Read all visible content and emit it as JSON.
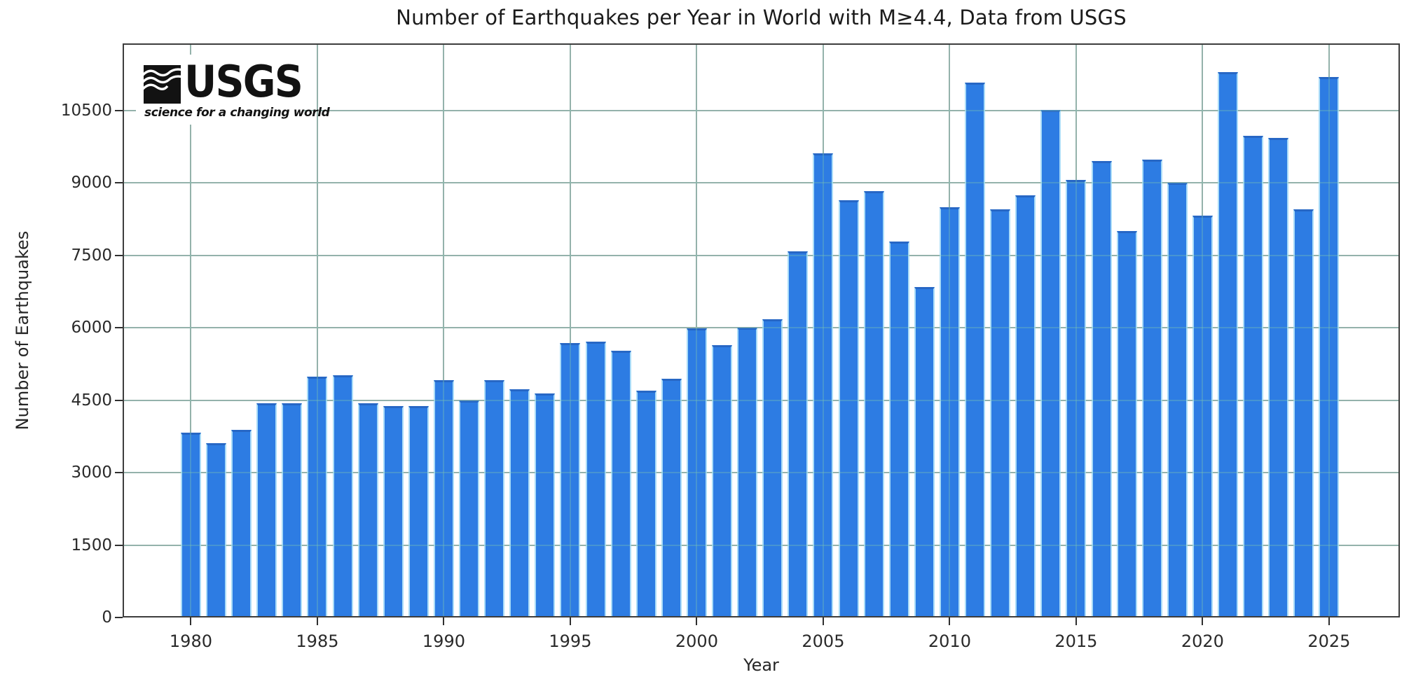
{
  "chart_data": {
    "type": "bar",
    "title": "Number of Earthquakes per Year in World with M≥4.4, Data from USGS",
    "xlabel": "Year",
    "ylabel": "Number of Earthquakes",
    "x": [
      1980,
      1981,
      1982,
      1983,
      1984,
      1985,
      1986,
      1987,
      1988,
      1989,
      1990,
      1991,
      1992,
      1993,
      1994,
      1995,
      1996,
      1997,
      1998,
      1999,
      2000,
      2001,
      2002,
      2003,
      2004,
      2005,
      2006,
      2007,
      2008,
      2009,
      2010,
      2011,
      2012,
      2013,
      2014,
      2015,
      2016,
      2017,
      2018,
      2019,
      2020,
      2021,
      2022,
      2023,
      2024,
      2025
    ],
    "values": [
      3830,
      3610,
      3880,
      4430,
      4430,
      4990,
      5020,
      4440,
      4380,
      4380,
      4910,
      4490,
      4920,
      4720,
      4640,
      5680,
      5710,
      5530,
      4700,
      4940,
      5990,
      5640,
      6000,
      6170,
      7590,
      9620,
      8640,
      8830,
      7780,
      6850,
      8490,
      11080,
      8460,
      8740,
      10510,
      9060,
      9460,
      8000,
      9490,
      9010,
      8330,
      11300,
      9980,
      9930,
      8460,
      11200
    ],
    "xticks": [
      1980,
      1985,
      1990,
      1995,
      2000,
      2005,
      2010,
      2015,
      2020,
      2025
    ],
    "yticks": [
      0,
      1500,
      3000,
      4500,
      6000,
      7500,
      9000,
      10500
    ],
    "ylim": [
      0,
      11890
    ],
    "xlim": [
      1977.3,
      2027.8
    ],
    "grid": true,
    "legend_position": "none",
    "colors": {
      "bar_fill": "#2d7ce3",
      "bar_edge": "#aadcf8",
      "bar_top": "#2767c5",
      "grid_under": "#a4aaa8",
      "spine": "#3d3d3d",
      "text": "#262626"
    }
  },
  "logo": {
    "text": "USGS",
    "tagline": "science for a changing world"
  }
}
